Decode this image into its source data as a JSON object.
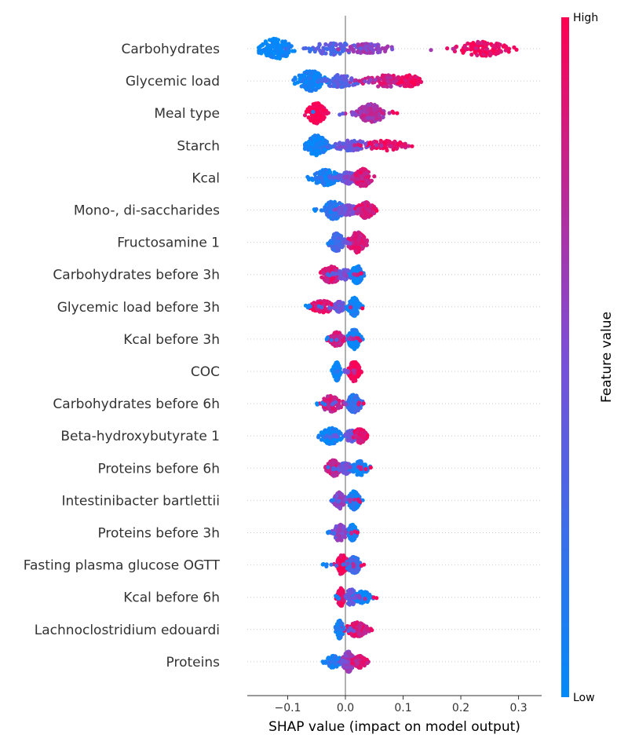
{
  "chart_data": {
    "type": "scatter",
    "subtype": "shap-beeswarm",
    "xlabel": "SHAP value (impact on model output)",
    "xlim": [
      -0.17,
      0.34
    ],
    "x_ticks": [
      {
        "value": -0.1,
        "label": "−0.1"
      },
      {
        "value": 0.0,
        "label": "0.0"
      },
      {
        "value": 0.1,
        "label": "0.1"
      },
      {
        "value": 0.2,
        "label": "0.2"
      },
      {
        "value": 0.3,
        "label": "0.3"
      }
    ],
    "colorbar": {
      "title": "Feature value",
      "high_label": "High",
      "low_label": "Low",
      "low_color": "#008afb",
      "mid_color": "#7a4fd8",
      "high_color": "#ff0052"
    },
    "grid": false,
    "features": [
      {
        "name": "Carbohydrates",
        "range": [
          -0.15,
          0.31
        ],
        "clusters": [
          {
            "center": -0.12,
            "spread": 0.025,
            "density": 1.0,
            "color": 0.0
          },
          {
            "center": -0.02,
            "spread": 0.04,
            "density": 0.6,
            "color": 0.35
          },
          {
            "center": 0.04,
            "spread": 0.03,
            "density": 0.5,
            "color": 0.6
          },
          {
            "center": 0.24,
            "spread": 0.04,
            "density": 0.7,
            "color": 0.95
          }
        ]
      },
      {
        "name": "Glycemic load",
        "range": [
          -0.09,
          0.14
        ],
        "clusters": [
          {
            "center": -0.06,
            "spread": 0.02,
            "density": 1.0,
            "color": 0.05
          },
          {
            "center": -0.01,
            "spread": 0.03,
            "density": 0.6,
            "color": 0.35
          },
          {
            "center": 0.07,
            "spread": 0.035,
            "density": 0.6,
            "color": 0.8
          },
          {
            "center": 0.11,
            "spread": 0.015,
            "density": 0.6,
            "color": 0.95
          }
        ]
      },
      {
        "name": "Meal type",
        "range": [
          -0.07,
          0.09
        ],
        "clusters": [
          {
            "center": -0.05,
            "spread": 0.013,
            "density": 1.0,
            "color": 1.0
          },
          {
            "center": 0.045,
            "spread": 0.02,
            "density": 0.9,
            "color": 0.7
          }
        ]
      },
      {
        "name": "Starch",
        "range": [
          -0.07,
          0.12
        ],
        "clusters": [
          {
            "center": -0.05,
            "spread": 0.015,
            "density": 1.0,
            "color": 0.05
          },
          {
            "center": 0.01,
            "spread": 0.03,
            "density": 0.5,
            "color": 0.45
          },
          {
            "center": 0.07,
            "spread": 0.03,
            "density": 0.5,
            "color": 0.9
          }
        ]
      },
      {
        "name": "Kcal",
        "range": [
          -0.07,
          0.05
        ],
        "clusters": [
          {
            "center": -0.035,
            "spread": 0.02,
            "density": 0.8,
            "color": 0.1
          },
          {
            "center": 0.005,
            "spread": 0.012,
            "density": 0.6,
            "color": 0.45
          },
          {
            "center": 0.03,
            "spread": 0.012,
            "density": 0.9,
            "color": 0.85
          }
        ]
      },
      {
        "name": "Mono-, di-saccharides",
        "range": [
          -0.055,
          0.055
        ],
        "clusters": [
          {
            "center": -0.02,
            "spread": 0.015,
            "density": 0.9,
            "color": 0.15
          },
          {
            "center": 0.005,
            "spread": 0.015,
            "density": 0.5,
            "color": 0.45
          },
          {
            "center": 0.035,
            "spread": 0.012,
            "density": 0.8,
            "color": 0.85
          }
        ]
      },
      {
        "name": "Fructosamine 1",
        "range": [
          -0.035,
          0.045
        ],
        "clusters": [
          {
            "center": -0.015,
            "spread": 0.01,
            "density": 0.9,
            "color": 0.3
          },
          {
            "center": 0.02,
            "spread": 0.012,
            "density": 1.0,
            "color": 0.85
          }
        ]
      },
      {
        "name": "Carbohydrates before 3h",
        "range": [
          -0.05,
          0.035
        ],
        "clusters": [
          {
            "center": -0.025,
            "spread": 0.015,
            "density": 0.8,
            "color": 0.85
          },
          {
            "center": 0.0,
            "spread": 0.012,
            "density": 0.5,
            "color": 0.45
          },
          {
            "center": 0.02,
            "spread": 0.008,
            "density": 0.9,
            "color": 0.05
          }
        ]
      },
      {
        "name": "Glycemic load before 3h",
        "range": [
          -0.07,
          0.03
        ],
        "clusters": [
          {
            "center": -0.04,
            "spread": 0.018,
            "density": 0.6,
            "color": 0.9
          },
          {
            "center": -0.01,
            "spread": 0.01,
            "density": 0.5,
            "color": 0.45
          },
          {
            "center": 0.015,
            "spread": 0.008,
            "density": 0.9,
            "color": 0.05
          }
        ]
      },
      {
        "name": "Kcal before 3h",
        "range": [
          -0.035,
          0.03
        ],
        "clusters": [
          {
            "center": -0.015,
            "spread": 0.01,
            "density": 0.7,
            "color": 0.8
          },
          {
            "center": 0.015,
            "spread": 0.008,
            "density": 1.0,
            "color": 0.05
          }
        ]
      },
      {
        "name": "COC",
        "range": [
          -0.025,
          0.03
        ],
        "clusters": [
          {
            "center": -0.015,
            "spread": 0.005,
            "density": 0.9,
            "color": 0.0
          },
          {
            "center": 0.015,
            "spread": 0.008,
            "density": 1.0,
            "color": 1.0
          }
        ]
      },
      {
        "name": "Carbohydrates before 6h",
        "range": [
          -0.05,
          0.035
        ],
        "clusters": [
          {
            "center": -0.025,
            "spread": 0.015,
            "density": 0.8,
            "color": 0.8
          },
          {
            "center": 0.015,
            "spread": 0.01,
            "density": 0.9,
            "color": 0.2
          }
        ]
      },
      {
        "name": "Beta-hydroxybutyrate 1",
        "range": [
          -0.06,
          0.04
        ],
        "clusters": [
          {
            "center": -0.025,
            "spread": 0.015,
            "density": 0.8,
            "color": 0.05
          },
          {
            "center": 0.01,
            "spread": 0.008,
            "density": 0.6,
            "color": 0.4
          },
          {
            "center": 0.025,
            "spread": 0.01,
            "density": 0.7,
            "color": 0.9
          }
        ]
      },
      {
        "name": "Proteins before 6h",
        "range": [
          -0.045,
          0.045
        ],
        "clusters": [
          {
            "center": -0.02,
            "spread": 0.01,
            "density": 0.8,
            "color": 0.8
          },
          {
            "center": 0.0,
            "spread": 0.008,
            "density": 0.6,
            "color": 0.45
          },
          {
            "center": 0.025,
            "spread": 0.012,
            "density": 0.7,
            "color": 0.05
          }
        ]
      },
      {
        "name": "Intestinibacter bartlettii",
        "range": [
          -0.03,
          0.03
        ],
        "clusters": [
          {
            "center": -0.01,
            "spread": 0.008,
            "density": 0.8,
            "color": 0.55
          },
          {
            "center": 0.015,
            "spread": 0.008,
            "density": 0.9,
            "color": 0.1
          }
        ]
      },
      {
        "name": "Proteins before 3h",
        "range": [
          -0.035,
          0.025
        ],
        "clusters": [
          {
            "center": -0.01,
            "spread": 0.01,
            "density": 0.8,
            "color": 0.55
          },
          {
            "center": 0.012,
            "spread": 0.006,
            "density": 0.8,
            "color": 0.05
          }
        ]
      },
      {
        "name": "Fasting plasma glucose OGTT",
        "range": [
          -0.04,
          0.035
        ],
        "clusters": [
          {
            "center": -0.005,
            "spread": 0.008,
            "density": 1.0,
            "color": 0.95
          },
          {
            "center": 0.015,
            "spread": 0.01,
            "density": 0.8,
            "color": 0.25
          }
        ]
      },
      {
        "name": "Kcal before 6h",
        "range": [
          -0.02,
          0.055
        ],
        "clusters": [
          {
            "center": -0.008,
            "spread": 0.005,
            "density": 0.9,
            "color": 0.9
          },
          {
            "center": 0.01,
            "spread": 0.008,
            "density": 0.8,
            "color": 0.4
          },
          {
            "center": 0.03,
            "spread": 0.012,
            "density": 0.6,
            "color": 0.05
          }
        ]
      },
      {
        "name": "Lachnoclostridium edouardi",
        "range": [
          -0.02,
          0.05
        ],
        "clusters": [
          {
            "center": -0.01,
            "spread": 0.005,
            "density": 0.9,
            "color": 0.1
          },
          {
            "center": 0.02,
            "spread": 0.015,
            "density": 0.7,
            "color": 0.85
          }
        ]
      },
      {
        "name": "Proteins",
        "range": [
          -0.045,
          0.045
        ],
        "clusters": [
          {
            "center": -0.02,
            "spread": 0.012,
            "density": 0.6,
            "color": 0.1
          },
          {
            "center": 0.005,
            "spread": 0.008,
            "density": 1.0,
            "color": 0.6
          },
          {
            "center": 0.025,
            "spread": 0.01,
            "density": 0.6,
            "color": 0.85
          }
        ]
      }
    ]
  }
}
